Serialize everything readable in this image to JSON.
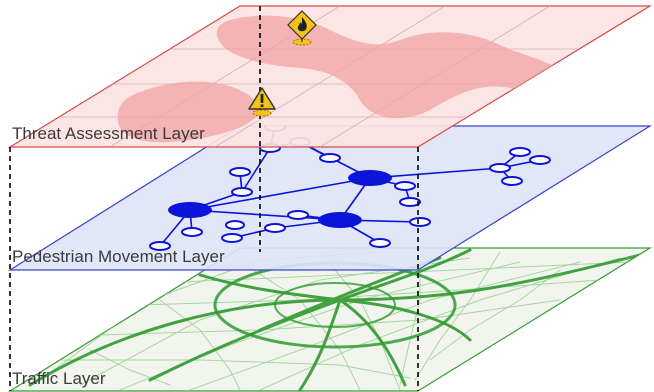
{
  "layers": [
    {
      "id": "threat",
      "label": "Threat Assessment Layer",
      "fill": "#fbe3e3",
      "edge": "#d84a4a",
      "zone_color": "#f2a3a3"
    },
    {
      "id": "pedestrian",
      "label": "Pedestrian Movement Layer",
      "fill": "#dfe3f8",
      "edge": "#3b46c8",
      "node_color": "#0b14d8"
    },
    {
      "id": "traffic",
      "label": "Traffic Layer",
      "fill": "#f2f5ee",
      "edge": "#3a9a3a",
      "road_color": "#2f9a2f"
    }
  ],
  "threat_markers": [
    {
      "type": "fire",
      "icon": "fire-warning-icon",
      "color": "#f7c217"
    },
    {
      "type": "warning",
      "icon": "exclamation-warning-icon",
      "color": "#f7c217"
    }
  ]
}
